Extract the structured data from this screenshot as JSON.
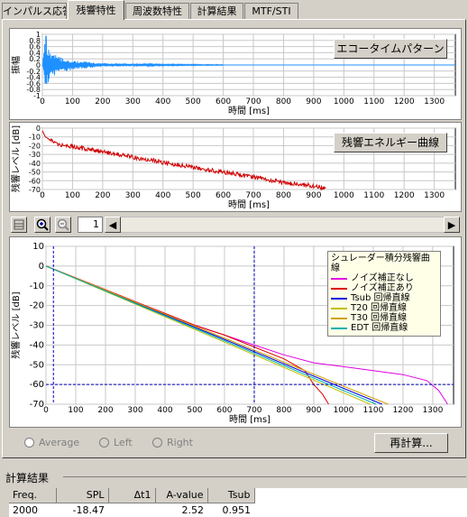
{
  "tabs": [
    {
      "label": "インパルス応答"
    },
    {
      "label": "残響特性"
    },
    {
      "label": "周波数特性"
    },
    {
      "label": "計算結果"
    },
    {
      "label": "MTF/STI"
    }
  ],
  "active_tab": 1,
  "echo_chart": {
    "button": "エコータイムパターン",
    "ylabel": "振幅",
    "xlabel": "時間 [ms]",
    "yticks": [
      "1",
      "0.8",
      "0.6",
      "0.4",
      "0.2",
      "0",
      "-0.2",
      "-0.4",
      "-0.6",
      "-0.8",
      "-1"
    ],
    "xticks": [
      "0",
      "100",
      "200",
      "300",
      "400",
      "500",
      "600",
      "700",
      "800",
      "900",
      "1000",
      "1100",
      "1200",
      "1300"
    ]
  },
  "decay_chart": {
    "button": "残響エネルギー曲線",
    "ylabel": "残響レベル [dB]",
    "xlabel": "時間 [ms]",
    "yticks": [
      "0",
      "-10",
      "-20",
      "-30",
      "-40",
      "-50",
      "-60",
      "-70"
    ],
    "xticks": [
      "0",
      "100",
      "200",
      "300",
      "400",
      "500",
      "600",
      "700",
      "800",
      "900",
      "1000",
      "1100",
      "1200",
      "1300"
    ]
  },
  "toolbar": {
    "page_value": "1"
  },
  "main_chart": {
    "ylabel": "残響レベル [dB]",
    "xlabel": "時間 [ms]",
    "yticks": [
      "10",
      "0",
      "-10",
      "-20",
      "-30",
      "-40",
      "-50",
      "-60",
      "-70"
    ],
    "xticks": [
      "0",
      "100",
      "200",
      "300",
      "400",
      "500",
      "600",
      "700",
      "800",
      "900",
      "1000",
      "1100",
      "1200",
      "1300"
    ],
    "legend_title": "シュレーダー積分残響曲線",
    "legend": [
      {
        "label": "ノイズ補正なし",
        "color": "#e000e0"
      },
      {
        "label": "ノイズ補正あり",
        "color": "#e00000"
      },
      {
        "label": "Tsub 回帰直線",
        "color": "#0000e0"
      },
      {
        "label": "T20 回帰直線",
        "color": "#c0c000"
      },
      {
        "label": "T30 回帰直線",
        "color": "#d0a000"
      },
      {
        "label": "EDT 回帰直線",
        "color": "#00b0b0"
      }
    ]
  },
  "radios": [
    {
      "label": "Average",
      "enabled": true
    },
    {
      "label": "Left",
      "enabled": false
    },
    {
      "label": "Right",
      "enabled": false
    }
  ],
  "recalc_button": "再計算...",
  "results": {
    "title": "計算結果",
    "headers": [
      "Freq.",
      "SPL",
      "Δt1",
      "A-value",
      "Tsub"
    ],
    "rows": [
      [
        "2000",
        "-18.47",
        "",
        "2.52",
        "0.951"
      ]
    ]
  },
  "chart_data": [
    {
      "type": "line",
      "title": "エコータイムパターン",
      "ylabel": "振幅",
      "xlabel": "時間 [ms]",
      "xlim": [
        0,
        1370
      ],
      "ylim": [
        -1,
        1
      ],
      "series": [
        {
          "values": [
            [
              0,
              0
            ],
            [
              10,
              0.95
            ],
            [
              20,
              -0.6
            ],
            [
              40,
              0.35
            ],
            [
              60,
              -0.25
            ],
            [
              100,
              0.15
            ],
            [
              200,
              0.06
            ],
            [
              300,
              0.04
            ],
            [
              400,
              0.02
            ],
            [
              600,
              0.01
            ],
            [
              1300,
              0.0
            ]
          ]
        }
      ]
    },
    {
      "type": "line",
      "title": "残響エネルギー曲線",
      "ylabel": "残響レベル [dB]",
      "xlabel": "時間 [ms]",
      "xlim": [
        0,
        1370
      ],
      "ylim": [
        -70,
        0
      ],
      "series": [
        {
          "values": [
            [
              0,
              -3
            ],
            [
              10,
              -10
            ],
            [
              50,
              -18
            ],
            [
              100,
              -21
            ],
            [
              200,
              -27
            ],
            [
              300,
              -33
            ],
            [
              400,
              -39
            ],
            [
              500,
              -45
            ],
            [
              600,
              -50
            ],
            [
              700,
              -56
            ],
            [
              800,
              -62
            ],
            [
              900,
              -66
            ],
            [
              940,
              -69
            ]
          ]
        }
      ]
    },
    {
      "type": "line",
      "ylabel": "残響レベル [dB]",
      "xlabel": "時間 [ms]",
      "xlim": [
        0,
        1370
      ],
      "ylim": [
        -70,
        10
      ],
      "series": [
        {
          "name": "ノイズ補正なし",
          "values": [
            [
              0,
              0
            ],
            [
              100,
              -6
            ],
            [
              200,
              -12
            ],
            [
              300,
              -18
            ],
            [
              400,
              -24
            ],
            [
              500,
              -30
            ],
            [
              600,
              -35
            ],
            [
              700,
              -40
            ],
            [
              800,
              -45
            ],
            [
              900,
              -49
            ],
            [
              1000,
              -51
            ],
            [
              1100,
              -53
            ],
            [
              1200,
              -55
            ],
            [
              1280,
              -58
            ],
            [
              1320,
              -63
            ],
            [
              1350,
              -70
            ]
          ]
        },
        {
          "name": "ノイズ補正あり",
          "values": [
            [
              0,
              0
            ],
            [
              100,
              -6
            ],
            [
              200,
              -12
            ],
            [
              300,
              -18
            ],
            [
              400,
              -24
            ],
            [
              500,
              -30
            ],
            [
              600,
              -35
            ],
            [
              700,
              -41
            ],
            [
              800,
              -47
            ],
            [
              870,
              -53
            ],
            [
              900,
              -60
            ],
            [
              930,
              -65
            ],
            [
              950,
              -70
            ]
          ]
        },
        {
          "name": "Tsub 回帰直線",
          "values": [
            [
              0,
              0
            ],
            [
              1130,
              -70
            ]
          ]
        },
        {
          "name": "T20 回帰直線",
          "values": [
            [
              0,
              0
            ],
            [
              1090,
              -70
            ]
          ]
        },
        {
          "name": "T30 回帰直線",
          "values": [
            [
              0,
              0
            ],
            [
              1150,
              -70
            ]
          ]
        },
        {
          "name": "EDT 回帰直線",
          "values": [
            [
              0,
              0
            ],
            [
              1110,
              -70
            ]
          ]
        }
      ],
      "markers": {
        "x": [
          25,
          700
        ],
        "y": -60
      }
    }
  ]
}
